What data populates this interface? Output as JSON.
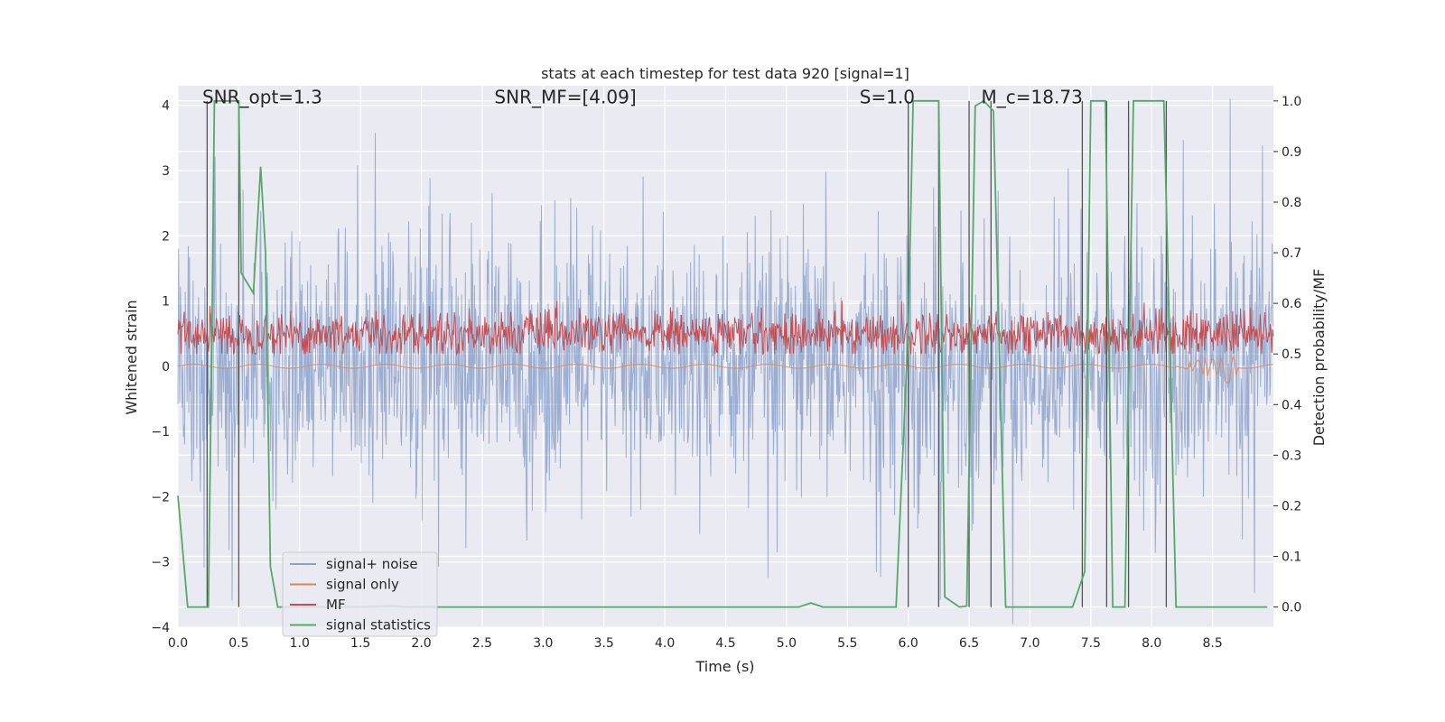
{
  "chart_data": {
    "type": "line",
    "title": "stats at each timestep for test data 920 [signal=1]",
    "xlabel": "Time (s)",
    "ylabel_left": "Whitened strain",
    "ylabel_right": "Detection probability/MF",
    "xlim": [
      0.0,
      9.0
    ],
    "ylim_left": [
      -4.0,
      4.3
    ],
    "ylim_right": [
      -0.04,
      1.03
    ],
    "xticks": [
      "0.0",
      "0.5",
      "1.0",
      "1.5",
      "2.0",
      "2.5",
      "3.0",
      "3.5",
      "4.0",
      "4.5",
      "5.0",
      "5.5",
      "6.0",
      "6.5",
      "7.0",
      "7.5",
      "8.0",
      "8.5"
    ],
    "yticks_left": [
      "4",
      "3",
      "2",
      "1",
      "0",
      "−1",
      "−2",
      "−3",
      "−4"
    ],
    "yticks_right": [
      "1.0",
      "0.9",
      "0.8",
      "0.7",
      "0.6",
      "0.5",
      "0.4",
      "0.3",
      "0.2",
      "0.1",
      "0.0"
    ],
    "grid": true,
    "legend_position": "lower-left",
    "annotations": [
      {
        "label": "SNR_opt=1.3",
        "x": 0.2,
        "y": 4.0
      },
      {
        "label": "SNR_MF=[4.09]",
        "x": 2.6,
        "y": 4.0
      },
      {
        "label": "S=1.0",
        "x": 5.6,
        "y": 4.0
      },
      {
        "label": "M_c=18.73",
        "x": 6.6,
        "y": 4.0
      }
    ],
    "series": [
      {
        "name": "signal+ noise",
        "color": "#4c72b0",
        "axis": "left",
        "description": "whitened strain noise, roughly within ±2.5, peaks near ±4"
      },
      {
        "name": "signal only",
        "color": "#dd8452",
        "axis": "left",
        "description": "near zero, small chirp around 8.2–8.7 s"
      },
      {
        "name": "MF",
        "color": "#c44e52",
        "axis": "right",
        "description": "matched filter output about 0.50–0.60"
      },
      {
        "name": "signal statistics",
        "color": "#55a868",
        "axis": "right",
        "x": [
          0.0,
          0.08,
          0.25,
          0.28,
          0.3,
          0.5,
          0.52,
          0.62,
          0.68,
          0.72,
          0.76,
          0.82,
          1.5,
          1.75,
          1.9,
          5.1,
          5.2,
          5.3,
          5.9,
          6.0,
          6.04,
          6.25,
          6.3,
          6.42,
          6.48,
          6.55,
          6.62,
          6.7,
          6.8,
          7.35,
          7.45,
          7.5,
          7.62,
          7.68,
          7.78,
          7.85,
          8.1,
          8.2,
          8.3,
          8.95
        ],
        "values": [
          0.22,
          0.0,
          0.0,
          0.55,
          1.0,
          1.0,
          0.66,
          0.62,
          0.87,
          0.7,
          0.08,
          0.0,
          0.0,
          0.002,
          0.0,
          0.0,
          0.008,
          0.0,
          0.0,
          0.55,
          1.0,
          1.0,
          0.02,
          0.0,
          0.002,
          0.99,
          1.0,
          0.98,
          0.0,
          0.0,
          0.07,
          1.0,
          1.0,
          0.0,
          0.0,
          1.0,
          1.0,
          0.0,
          0.0,
          0.0
        ]
      }
    ],
    "vertical_markers_x": [
      0.24,
      0.5,
      6.0,
      6.25,
      6.5,
      6.68,
      7.43,
      7.63,
      7.81,
      8.12
    ]
  }
}
